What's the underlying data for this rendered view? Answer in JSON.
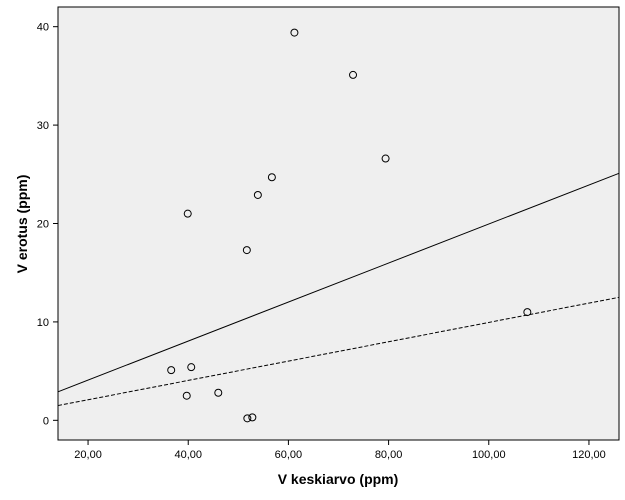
{
  "chart_data": {
    "type": "scatter",
    "title": "",
    "xlabel": "V keskiarvo (ppm)",
    "ylabel": "V erotus (ppm)",
    "xlim": [
      14.0,
      126.0
    ],
    "ylim": [
      -2.0,
      42.0
    ],
    "x_ticks": [
      20,
      40,
      60,
      80,
      100,
      120
    ],
    "x_tick_labels": [
      "20,00",
      "40,00",
      "60,00",
      "80,00",
      "100,00",
      "120,00"
    ],
    "y_ticks": [
      0,
      10,
      20,
      30,
      40
    ],
    "y_tick_labels": [
      "0",
      "10",
      "20",
      "30",
      "40"
    ],
    "grid": false,
    "legend": "none",
    "colors": {
      "plot_background": "#efefef",
      "marker": "#000000",
      "axis": "#000000"
    },
    "series": [
      {
        "type": "scatter",
        "marker": "open-circle",
        "x": [
          36.6,
          39.7,
          39.9,
          40.6,
          46.0,
          51.7,
          51.8,
          52.8,
          53.9,
          56.7,
          61.2,
          72.9,
          79.4,
          107.7
        ],
        "y": [
          5.1,
          2.5,
          21.0,
          5.4,
          2.8,
          17.3,
          0.2,
          0.3,
          22.9,
          24.7,
          39.4,
          35.1,
          26.6,
          11.0
        ]
      },
      {
        "type": "line",
        "style": "solid",
        "x": [
          14.0,
          126.0
        ],
        "y": [
          2.9,
          25.1
        ]
      },
      {
        "type": "line",
        "style": "dashed",
        "x": [
          14.0,
          126.0
        ],
        "y": [
          1.5,
          12.5
        ]
      }
    ]
  }
}
